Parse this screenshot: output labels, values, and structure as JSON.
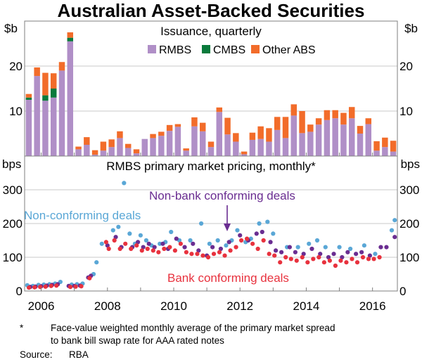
{
  "title": "Australian Asset-Backed Securities",
  "footnote": {
    "marker": "*",
    "line1": "Face-value weighted monthly average of the primary market spread",
    "line2": "to bank bill swap rate for AAA rated notes",
    "source_label": "Source:",
    "source_value": "RBA"
  },
  "colors": {
    "rmbs": "#b08fc7",
    "cmbs": "#0a7a3c",
    "other_abs": "#f26c2a",
    "non_conforming": "#5aa7d6",
    "non_bank": "#6a2d91",
    "bank": "#e8323e",
    "frame": "#7f7f7f",
    "grid": "#c8c8c8"
  },
  "chart_data": [
    {
      "type": "bar",
      "stacked": true,
      "title": "Issuance, quarterly",
      "unit_left": "$b",
      "unit_right": "$b",
      "ylim": [
        0,
        30
      ],
      "yticks": [
        10,
        20
      ],
      "x_start": 2005.5,
      "x_end": 2016.75,
      "first_quarter": 2005.5,
      "bar_step": 0.25,
      "series": [
        {
          "name": "RMBS",
          "color_key": "rmbs",
          "values": [
            12.5,
            17.8,
            12.3,
            13.0,
            19.0,
            25.5,
            1.5,
            2.5,
            0.3,
            1.2,
            2.0,
            4.0,
            1.8,
            0.6,
            3.8,
            4.0,
            4.5,
            5.6,
            6.5,
            1.2,
            6.6,
            5.5,
            2.0,
            9.8,
            4.8,
            3.2,
            0.4,
            3.6,
            3.8,
            3.2,
            5.8,
            4.0,
            9.0,
            5.1,
            5.4,
            7.0,
            8.0,
            8.4,
            7.0,
            8.4,
            5.0,
            7.1,
            1.2,
            2.0,
            1.0
          ]
        },
        {
          "name": "CMBS",
          "color_key": "cmbs",
          "values": [
            0.5,
            0,
            1.2,
            2.0,
            0,
            0.8,
            0,
            0,
            0,
            0,
            0,
            0,
            0,
            0,
            0,
            0,
            0,
            0,
            0,
            0,
            0,
            0,
            0,
            0,
            0,
            0,
            0,
            0,
            0,
            0,
            0,
            0,
            0,
            0,
            0,
            0,
            0,
            0,
            0,
            0,
            0,
            0,
            0,
            0,
            0
          ]
        },
        {
          "name": "Other ABS",
          "color_key": "other_abs",
          "values": [
            0.8,
            1.9,
            5.0,
            3.4,
            1.9,
            1.2,
            0.6,
            1.7,
            1.0,
            2.0,
            1.7,
            1.5,
            0.9,
            0.9,
            0,
            0.9,
            0.9,
            1.3,
            0.6,
            0.5,
            2.0,
            1.9,
            1.2,
            1.0,
            3.7,
            1.9,
            0.6,
            1.6,
            2.8,
            3.0,
            2.9,
            4.7,
            2.5,
            4.9,
            1.6,
            1.4,
            2.2,
            1.8,
            2.6,
            2.5,
            1.7,
            1.3,
            2.1,
            2.1,
            2.4
          ]
        }
      ]
    },
    {
      "type": "scatter",
      "title": "RMBS primary market pricing, monthly*",
      "unit_left": "bps",
      "unit_right": "bps",
      "ylim": [
        0,
        400
      ],
      "yticks": [
        0,
        100,
        200,
        300
      ],
      "xlim": [
        2005.5,
        2016.75
      ],
      "xticks": [
        2006,
        2008,
        2010,
        2012,
        2014,
        2016
      ],
      "x_tick_labels": [
        "2006",
        "2008",
        "2010",
        "2012",
        "2014",
        "2016"
      ],
      "series": [
        {
          "name": "Non-conforming deals",
          "color_key": "non_conforming",
          "points": [
            [
              2005.58,
              17
            ],
            [
              2005.75,
              15
            ],
            [
              2005.92,
              18
            ],
            [
              2006.08,
              19
            ],
            [
              2006.25,
              20
            ],
            [
              2006.42,
              22
            ],
            [
              2006.58,
              27
            ],
            [
              2006.92,
              19
            ],
            [
              2007.08,
              20
            ],
            [
              2007.25,
              22
            ],
            [
              2007.58,
              50
            ],
            [
              2007.67,
              85
            ],
            [
              2007.83,
              140
            ],
            [
              2008.17,
              180
            ],
            [
              2008.33,
              190
            ],
            [
              2008.5,
              320
            ],
            [
              2008.67,
              170
            ],
            [
              2008.83,
              140
            ],
            [
              2009.0,
              165
            ],
            [
              2009.17,
              150
            ],
            [
              2009.33,
              135
            ],
            [
              2009.58,
              140
            ],
            [
              2009.75,
              145
            ],
            [
              2009.92,
              175
            ],
            [
              2010.17,
              150
            ],
            [
              2010.5,
              150
            ],
            [
              2010.83,
              200
            ],
            [
              2011.08,
              140
            ],
            [
              2011.33,
              150
            ],
            [
              2011.58,
              135
            ],
            [
              2011.75,
              150
            ],
            [
              2011.92,
              180
            ],
            [
              2012.17,
              145
            ],
            [
              2012.33,
              155
            ],
            [
              2012.58,
              200
            ],
            [
              2012.83,
              205
            ],
            [
              2013.0,
              170
            ],
            [
              2013.42,
              130
            ],
            [
              2013.75,
              130
            ],
            [
              2014.08,
              140
            ],
            [
              2014.33,
              150
            ],
            [
              2014.58,
              130
            ],
            [
              2015.0,
              130
            ],
            [
              2015.33,
              125
            ],
            [
              2015.75,
              135
            ],
            [
              2016.08,
              110
            ],
            [
              2016.58,
              180
            ],
            [
              2016.67,
              210
            ]
          ]
        },
        {
          "name": "Non-bank conforming deals",
          "color_key": "non_bank",
          "points": [
            [
              2005.67,
              12
            ],
            [
              2005.83,
              13
            ],
            [
              2006.0,
              14
            ],
            [
              2006.17,
              16
            ],
            [
              2006.33,
              18
            ],
            [
              2006.5,
              20
            ],
            [
              2006.83,
              15
            ],
            [
              2007.0,
              15
            ],
            [
              2007.17,
              16
            ],
            [
              2007.42,
              40
            ],
            [
              2007.5,
              45
            ],
            [
              2008.0,
              135
            ],
            [
              2008.25,
              160
            ],
            [
              2008.42,
              130
            ],
            [
              2008.75,
              130
            ],
            [
              2008.92,
              145
            ],
            [
              2009.08,
              130
            ],
            [
              2009.25,
              140
            ],
            [
              2009.42,
              130
            ],
            [
              2009.67,
              140
            ],
            [
              2009.83,
              125
            ],
            [
              2010.08,
              155
            ],
            [
              2010.33,
              130
            ],
            [
              2010.58,
              140
            ],
            [
              2010.75,
              120
            ],
            [
              2011.0,
              105
            ],
            [
              2011.17,
              130
            ],
            [
              2011.42,
              125
            ],
            [
              2011.67,
              145
            ],
            [
              2012.0,
              165
            ],
            [
              2012.25,
              150
            ],
            [
              2012.5,
              170
            ],
            [
              2012.67,
              175
            ],
            [
              2012.92,
              145
            ],
            [
              2013.08,
              120
            ],
            [
              2013.25,
              115
            ],
            [
              2013.5,
              130
            ],
            [
              2013.67,
              115
            ],
            [
              2013.92,
              110
            ],
            [
              2014.17,
              125
            ],
            [
              2014.42,
              110
            ],
            [
              2014.67,
              100
            ],
            [
              2014.83,
              110
            ],
            [
              2015.08,
              100
            ],
            [
              2015.25,
              115
            ],
            [
              2015.5,
              110
            ],
            [
              2015.67,
              115
            ],
            [
              2015.92,
              105
            ],
            [
              2016.25,
              130
            ],
            [
              2016.42,
              130
            ],
            [
              2016.67,
              160
            ]
          ]
        },
        {
          "name": "Bank conforming deals",
          "color_key": "bank",
          "points": [
            [
              2005.63,
              10
            ],
            [
              2005.8,
              11
            ],
            [
              2005.97,
              12
            ],
            [
              2006.13,
              13
            ],
            [
              2006.3,
              15
            ],
            [
              2006.46,
              16
            ],
            [
              2006.88,
              12
            ],
            [
              2007.04,
              13
            ],
            [
              2007.21,
              14
            ],
            [
              2007.46,
              38
            ],
            [
              2007.96,
              145
            ],
            [
              2008.04,
              125
            ],
            [
              2008.21,
              150
            ],
            [
              2008.38,
              125
            ],
            [
              2008.54,
              140
            ],
            [
              2008.71,
              125
            ],
            [
              2008.88,
              135
            ],
            [
              2009.04,
              120
            ],
            [
              2009.21,
              125
            ],
            [
              2009.38,
              120
            ],
            [
              2009.54,
              115
            ],
            [
              2009.71,
              125
            ],
            [
              2009.88,
              130
            ],
            [
              2010.04,
              120
            ],
            [
              2010.21,
              140
            ],
            [
              2010.38,
              115
            ],
            [
              2010.54,
              110
            ],
            [
              2010.71,
              110
            ],
            [
              2010.88,
              105
            ],
            [
              2011.04,
              100
            ],
            [
              2011.21,
              110
            ],
            [
              2011.38,
              115
            ],
            [
              2011.54,
              105
            ],
            [
              2011.71,
              120
            ],
            [
              2011.88,
              130
            ],
            [
              2012.04,
              150
            ],
            [
              2012.21,
              155
            ],
            [
              2012.38,
              140
            ],
            [
              2012.54,
              125
            ],
            [
              2012.71,
              150
            ],
            [
              2012.88,
              110
            ],
            [
              2013.04,
              105
            ],
            [
              2013.21,
              85
            ],
            [
              2013.38,
              100
            ],
            [
              2013.54,
              95
            ],
            [
              2013.71,
              90
            ],
            [
              2013.88,
              100
            ],
            [
              2014.04,
              85
            ],
            [
              2014.21,
              95
            ],
            [
              2014.38,
              100
            ],
            [
              2014.54,
              85
            ],
            [
              2014.71,
              90
            ],
            [
              2014.88,
              75
            ],
            [
              2015.04,
              90
            ],
            [
              2015.21,
              85
            ],
            [
              2015.38,
              95
            ],
            [
              2015.54,
              85
            ],
            [
              2015.71,
              100
            ],
            [
              2015.88,
              95
            ],
            [
              2016.04,
              95
            ],
            [
              2016.21,
              100
            ]
          ]
        }
      ],
      "annotations": [
        {
          "text": "Non-conforming deals",
          "series": 0
        },
        {
          "text": "Non-bank conforming deals",
          "series": 1
        },
        {
          "text": "Bank conforming deals",
          "series": 2
        }
      ]
    }
  ]
}
